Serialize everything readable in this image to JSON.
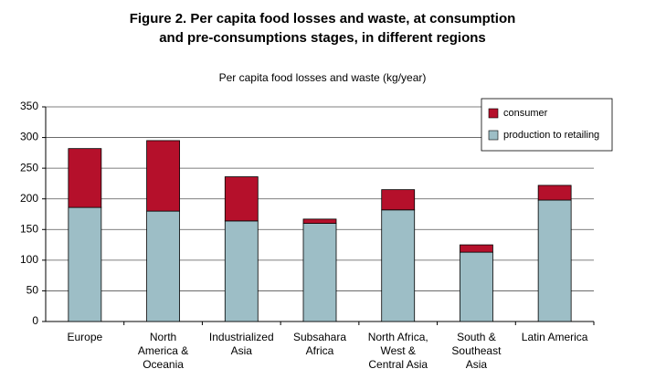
{
  "chart_data": {
    "type": "stacked-bar",
    "title": [
      "Figure 2.  Per capita food losses and waste, at consumption",
      "and pre-consumptions stages, in different regions"
    ],
    "subtitle": "Per capita food losses and waste (kg/year)",
    "categories": [
      [
        "Europe"
      ],
      [
        "North",
        "America &",
        "Oceania"
      ],
      [
        "Industrialized",
        "Asia"
      ],
      [
        "Subsahara",
        "Africa"
      ],
      [
        "North Africa,",
        "West &",
        "Central Asia"
      ],
      [
        "South &",
        "Southeast",
        "Asia"
      ],
      [
        "Latin America"
      ]
    ],
    "series": [
      {
        "name": "production to retailing",
        "color": "#9dbec6",
        "values": [
          186,
          180,
          164,
          160,
          182,
          113,
          198
        ]
      },
      {
        "name": "consumer",
        "color": "#b5102b",
        "values": [
          96,
          115,
          72,
          7,
          33,
          12,
          24
        ]
      }
    ],
    "ylim": [
      0,
      350
    ],
    "yticks": [
      0,
      50,
      100,
      150,
      200,
      250,
      300,
      350
    ],
    "grid": true,
    "legend": "top-right"
  }
}
